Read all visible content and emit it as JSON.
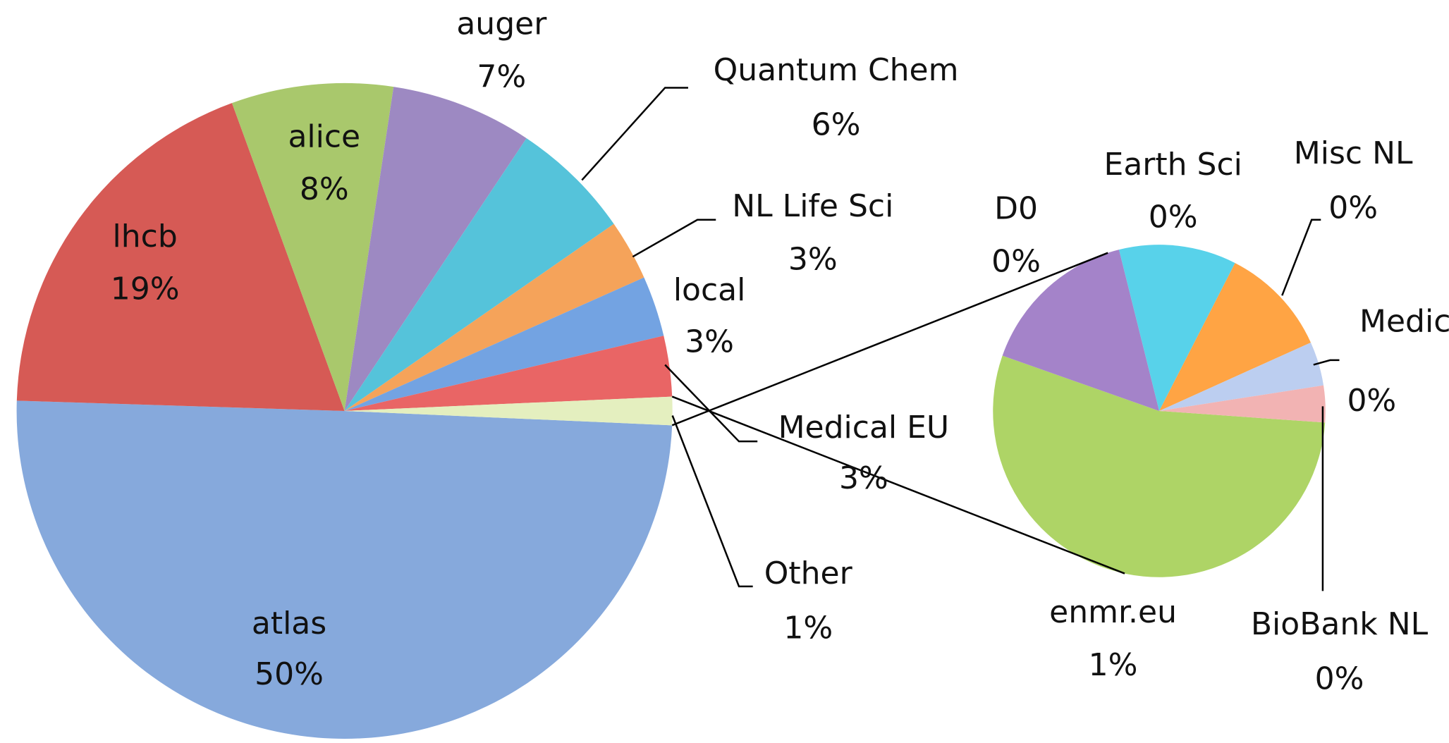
{
  "chart_data": {
    "type": "pie",
    "categories": [
      "atlas",
      "lhcb",
      "alice",
      "auger",
      "Quantum Chem",
      "NL Life Sci",
      "local",
      "Medical EU",
      "Other"
    ],
    "values": [
      50,
      19,
      8,
      7,
      6,
      3,
      3,
      3,
      1.4
    ],
    "value_labels": [
      "50%",
      "19%",
      "8%",
      "7%",
      "6%",
      "3%",
      "3%",
      "3%",
      "1%"
    ],
    "colors": [
      "#86a9dc",
      "#d65a55",
      "#a9c86c",
      "#9d89c2",
      "#55c3da",
      "#f5a35a",
      "#73a3e2",
      "#e96565",
      "#e4efbf"
    ],
    "secondary": {
      "categories": [
        "enmr.eu",
        "D0",
        "Earth Sci",
        "Misc NL",
        "Medical NL",
        "BioBank NL"
      ],
      "values": [
        0.76,
        0.22,
        0.16,
        0.15,
        0.06,
        0.05
      ],
      "value_labels": [
        "1%",
        "0%",
        "0%",
        "0%",
        "0%",
        "0%"
      ],
      "colors": [
        "#aed466",
        "#a483c9",
        "#58d2ea",
        "#ffa444",
        "#bccef0",
        "#f2b3b3"
      ]
    }
  }
}
